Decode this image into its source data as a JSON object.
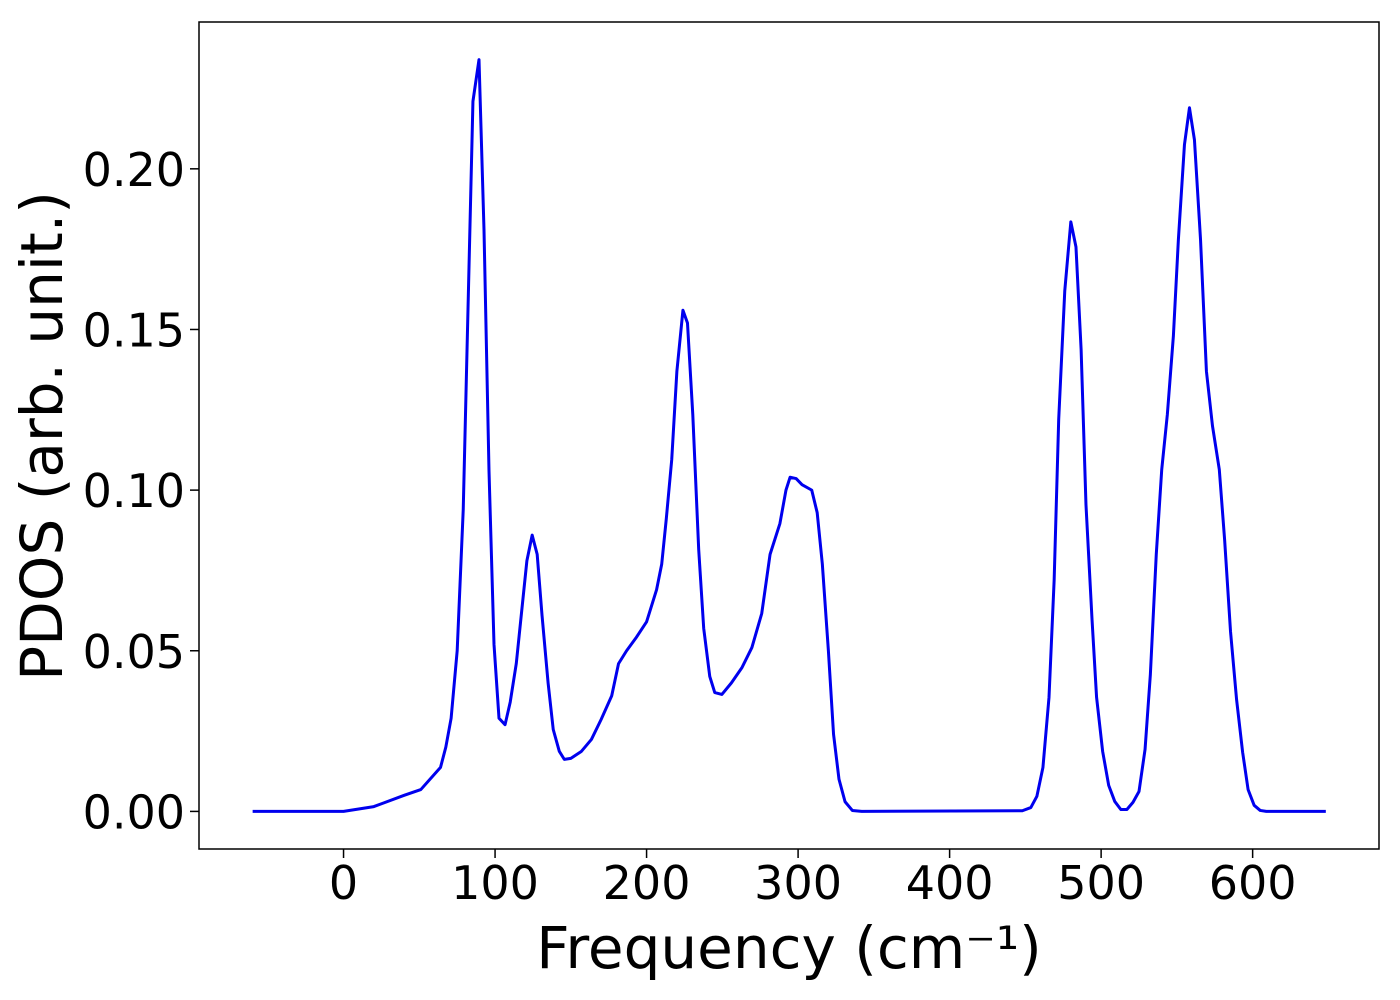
{
  "chart_data": {
    "type": "line",
    "xlabel": "Frequency (cm⁻¹)",
    "ylabel": "PDOS (arb. unit.)",
    "color": "#0000ee",
    "x": [
      -60,
      0,
      20,
      40,
      51,
      64,
      67.5,
      71,
      75,
      79,
      85.4,
      89.4,
      92.7,
      96,
      99.3,
      102.6,
      106.6,
      110,
      114,
      121,
      124.5,
      127.8,
      131,
      135,
      138.4,
      142.4,
      145.7,
      150,
      157,
      163.6,
      170,
      177,
      181.5,
      186.8,
      193,
      200,
      206.6,
      210,
      213,
      216.6,
      220,
      224,
      227,
      230.5,
      234.4,
      237.7,
      241.7,
      245,
      249.7,
      256,
      263,
      269.5,
      276,
      281.5,
      288,
      292,
      294.7,
      298.7,
      302.6,
      309,
      312.6,
      316,
      320,
      323.4,
      327,
      331,
      335.8,
      342,
      448,
      453.6,
      457.6,
      461.6,
      465.6,
      469,
      472,
      476,
      480,
      483.4,
      486.8,
      490,
      494,
      497,
      501,
      505,
      509,
      513,
      517,
      521,
      525,
      529,
      532.5,
      536.4,
      540,
      543.7,
      547.7,
      551,
      555,
      558.3,
      561.6,
      565.6,
      569.5,
      573.5,
      578,
      581.5,
      585.4,
      589.4,
      593.4,
      597,
      601,
      605,
      609,
      648.3
    ],
    "values": [
      0,
      0,
      0.0015,
      0.005,
      0.0068,
      0.0137,
      0.02,
      0.029,
      0.05,
      0.094,
      0.221,
      0.234,
      0.181,
      0.106,
      0.052,
      0.029,
      0.027,
      0.034,
      0.046,
      0.078,
      0.086,
      0.08,
      0.061,
      0.04,
      0.0255,
      0.0187,
      0.0162,
      0.0165,
      0.0187,
      0.0224,
      0.0286,
      0.036,
      0.046,
      0.05,
      0.054,
      0.059,
      0.069,
      0.077,
      0.091,
      0.1095,
      0.137,
      0.156,
      0.152,
      0.1235,
      0.0815,
      0.057,
      0.042,
      0.037,
      0.0364,
      0.04,
      0.0448,
      0.051,
      0.0616,
      0.08,
      0.0896,
      0.1,
      0.104,
      0.1036,
      0.1017,
      0.1,
      0.093,
      0.077,
      0.05,
      0.024,
      0.01,
      0.003,
      0.0003,
      0,
      0.0002,
      0.0012,
      0.0047,
      0.0137,
      0.0355,
      0.072,
      0.122,
      0.162,
      0.1835,
      0.1757,
      0.1437,
      0.0955,
      0.0597,
      0.0355,
      0.0187,
      0.0081,
      0.0031,
      0.0006,
      0.0006,
      0.0028,
      0.0062,
      0.0193,
      0.0426,
      0.08,
      0.1064,
      0.1235,
      0.148,
      0.178,
      0.2075,
      0.219,
      0.209,
      0.178,
      0.137,
      0.12,
      0.1064,
      0.0846,
      0.056,
      0.0348,
      0.0184,
      0.0068,
      0.0019,
      0.0003,
      0,
      0
    ],
    "xlim": [
      -95.4,
      683.4
    ],
    "xticks": [
      0,
      100,
      200,
      300,
      400,
      500,
      600
    ],
    "ylim": [
      -0.0117,
      0.2457
    ],
    "yticks": [
      {
        "value": 0,
        "label": "0.00"
      },
      {
        "value": 0.05,
        "label": "0.05"
      },
      {
        "value": 0.1,
        "label": "0.10"
      },
      {
        "value": 0.15,
        "label": "0.15"
      },
      {
        "value": 0.2,
        "label": "0.20"
      }
    ],
    "grid": false
  }
}
